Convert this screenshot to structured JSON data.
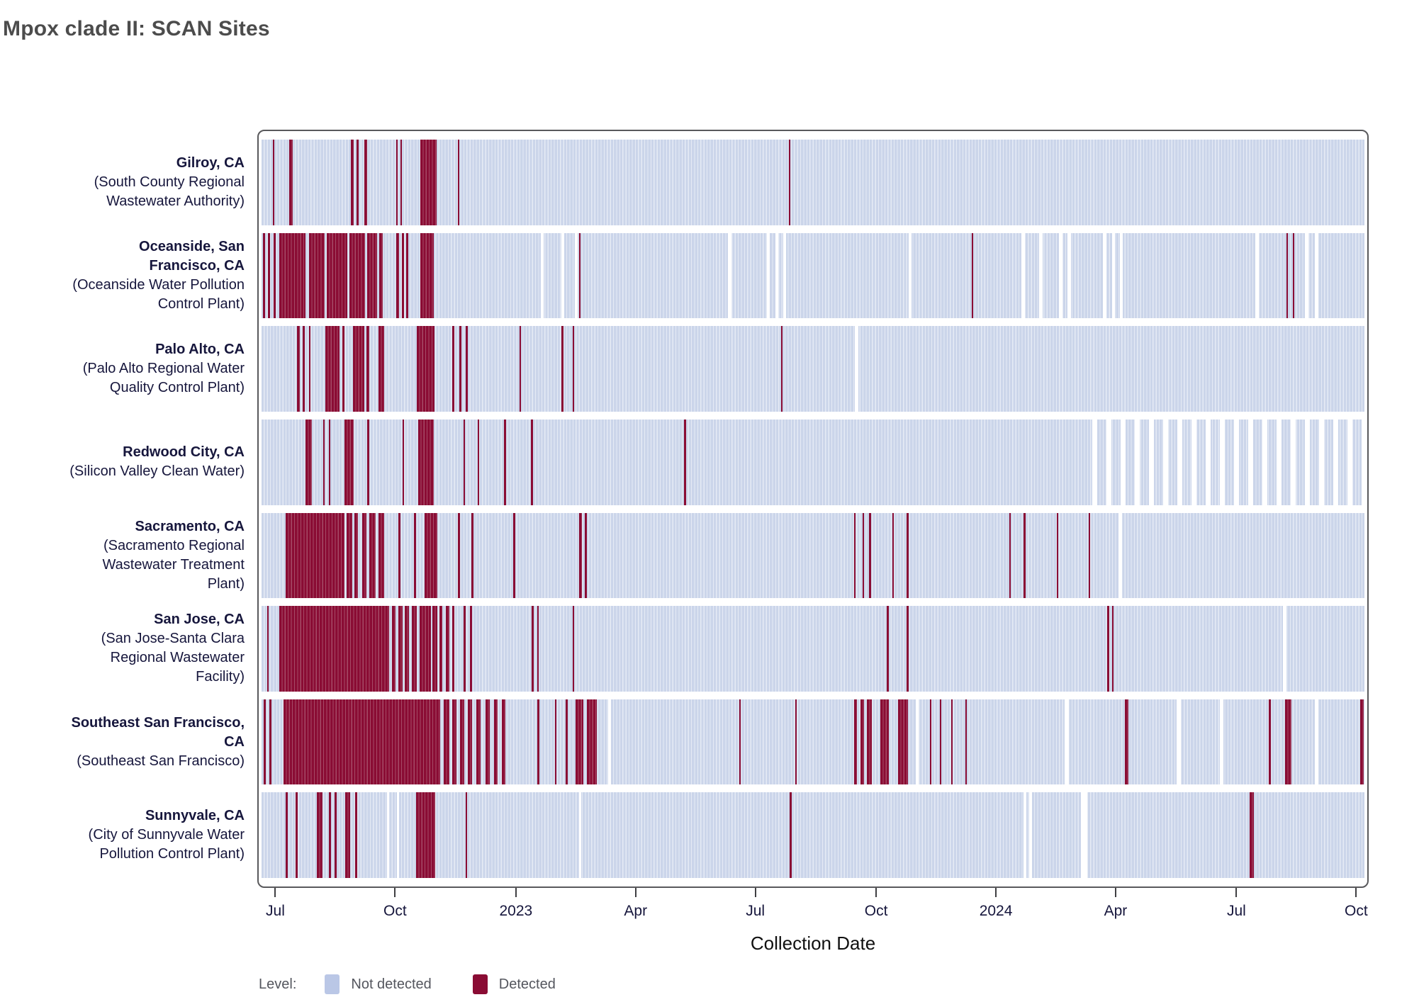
{
  "chart_data": {
    "type": "heatmap",
    "title": "Mpox clade II: SCAN Sites",
    "xlabel": "Collection Date",
    "x_axis": {
      "domain_start": "2022-06-18",
      "domain_end": "2024-10-12",
      "ticks": [
        {
          "label": "Jul",
          "pct": 1.5
        },
        {
          "label": "Oct",
          "pct": 12.3
        },
        {
          "label": "2023",
          "pct": 23.2
        },
        {
          "label": "Apr",
          "pct": 34.0
        },
        {
          "label": "Jul",
          "pct": 44.8
        },
        {
          "label": "Oct",
          "pct": 55.7
        },
        {
          "label": "2024",
          "pct": 66.5
        },
        {
          "label": "Apr",
          "pct": 77.3
        },
        {
          "label": "Jul",
          "pct": 88.2
        },
        {
          "label": "Oct",
          "pct": 99.0
        }
      ]
    },
    "legend": {
      "title": "Level:",
      "items": [
        {
          "label": "Not detected",
          "color": "#bac7e6"
        },
        {
          "label": "Detected",
          "color": "#8a0c34"
        }
      ]
    },
    "colors": {
      "not_detected_stripe": "#cbd5ea",
      "not_detected_stripe_light": "#e6ebf5",
      "detected": "#8a0c34",
      "panel_border": "#59595c",
      "label_text": "#16163c",
      "title_text": "#4c4c4c",
      "legend_text": "#54565e"
    },
    "sites": [
      {
        "name": "Gilroy, CA",
        "facility": "(South County Regional Wastewater Authority)",
        "detections": [
          [
            1.0,
            0.15
          ],
          [
            2.5,
            0.3
          ],
          [
            8.1,
            0.25
          ],
          [
            8.6,
            0.2
          ],
          [
            9.3,
            0.3
          ],
          [
            12.2,
            0.15
          ],
          [
            12.6,
            0.15
          ],
          [
            14.4,
            1.45
          ],
          [
            17.8,
            0.15
          ],
          [
            47.8,
            0.15
          ]
        ],
        "gaps": [],
        "sparse": []
      },
      {
        "name": "Oceanside, San Francisco, CA",
        "facility": "(Oceanside Water Pollution Control Plant)",
        "detections": [
          [
            0.1,
            0.25
          ],
          [
            0.6,
            0.2
          ],
          [
            1.1,
            0.2
          ],
          [
            1.6,
            2.4
          ],
          [
            4.3,
            1.4
          ],
          [
            5.9,
            1.9
          ],
          [
            8.0,
            1.4
          ],
          [
            9.6,
            0.9
          ],
          [
            10.7,
            0.3
          ],
          [
            12.2,
            0.25
          ],
          [
            12.7,
            0.25
          ],
          [
            13.1,
            0.2
          ],
          [
            14.4,
            1.2
          ],
          [
            28.8,
            0.13
          ],
          [
            64.4,
            0.15
          ],
          [
            92.9,
            0.13
          ],
          [
            93.5,
            0.13
          ]
        ],
        "gaps": [
          [
            25.3,
            0.25
          ],
          [
            27.2,
            0.25
          ],
          [
            28.4,
            0.25
          ],
          [
            42.3,
            0.3
          ],
          [
            45.8,
            0.25
          ],
          [
            46.6,
            0.25
          ],
          [
            47.3,
            0.25
          ],
          [
            58.7,
            0.25
          ],
          [
            68.9,
            0.3
          ],
          [
            70.5,
            0.3
          ],
          [
            72.3,
            0.3
          ],
          [
            73.1,
            0.3
          ],
          [
            76.3,
            0.3
          ],
          [
            77.1,
            0.3
          ],
          [
            77.8,
            0.3
          ],
          [
            90.1,
            0.3
          ],
          [
            94.6,
            0.3
          ],
          [
            95.5,
            0.3
          ]
        ],
        "sparse": []
      },
      {
        "name": "Palo Alto, CA",
        "facility": "(Palo Alto Regional Water Quality Control Plant)",
        "detections": [
          [
            3.2,
            0.25
          ],
          [
            3.7,
            0.2
          ],
          [
            4.3,
            0.15
          ],
          [
            5.8,
            1.3
          ],
          [
            7.3,
            0.25
          ],
          [
            8.3,
            1.0
          ],
          [
            9.5,
            0.3
          ],
          [
            10.6,
            0.55
          ],
          [
            14.1,
            1.55
          ],
          [
            17.3,
            0.2
          ],
          [
            17.9,
            0.2
          ],
          [
            18.5,
            0.2
          ],
          [
            23.4,
            0.15
          ],
          [
            27.2,
            0.15
          ],
          [
            28.2,
            0.15
          ],
          [
            47.1,
            0.15
          ]
        ],
        "gaps": [
          [
            53.8,
            0.3
          ]
        ],
        "sparse": []
      },
      {
        "name": "Redwood City, CA",
        "facility": "(Silicon Valley Clean Water)",
        "detections": [
          [
            4.0,
            0.55
          ],
          [
            5.6,
            0.15
          ],
          [
            6.1,
            0.15
          ],
          [
            7.5,
            0.85
          ],
          [
            9.6,
            0.2
          ],
          [
            12.8,
            0.15
          ],
          [
            14.2,
            1.4
          ],
          [
            18.3,
            0.15
          ],
          [
            19.6,
            0.15
          ],
          [
            22.0,
            0.15
          ],
          [
            24.4,
            0.2
          ],
          [
            38.3,
            0.2
          ]
        ],
        "gaps": [],
        "sparse": [
          [
            74.5,
            25.5
          ]
        ]
      },
      {
        "name": "Sacramento, CA",
        "facility": "(Sacramento Regional Wastewater Treatment Plant)",
        "detections": [
          [
            2.2,
            5.3
          ],
          [
            7.7,
            0.5
          ],
          [
            8.4,
            0.35
          ],
          [
            9.1,
            0.4
          ],
          [
            9.8,
            0.55
          ],
          [
            10.6,
            0.5
          ],
          [
            12.4,
            0.2
          ],
          [
            13.8,
            0.2
          ],
          [
            14.8,
            1.15
          ],
          [
            17.8,
            0.2
          ],
          [
            19.0,
            0.2
          ],
          [
            22.8,
            0.2
          ],
          [
            28.8,
            0.25
          ],
          [
            29.3,
            0.2
          ],
          [
            53.7,
            0.15
          ],
          [
            54.5,
            0.15
          ],
          [
            55.1,
            0.15
          ],
          [
            57.2,
            0.15
          ],
          [
            58.5,
            0.15
          ],
          [
            67.8,
            0.15
          ],
          [
            69.1,
            0.15
          ],
          [
            72.1,
            0.15
          ],
          [
            75.0,
            0.15
          ]
        ],
        "gaps": [
          [
            77.7,
            0.35
          ]
        ],
        "sparse": []
      },
      {
        "name": "San Jose, CA",
        "facility": "(San Jose-Santa Clara Regional Wastewater Facility)",
        "detections": [
          [
            0.5,
            0.15
          ],
          [
            1.6,
            10.0
          ],
          [
            11.8,
            0.35
          ],
          [
            12.4,
            0.4
          ],
          [
            13.0,
            0.35
          ],
          [
            13.6,
            0.5
          ],
          [
            14.3,
            1.05
          ],
          [
            15.5,
            0.45
          ],
          [
            16.1,
            0.3
          ],
          [
            16.7,
            0.3
          ],
          [
            17.3,
            0.2
          ],
          [
            18.3,
            0.2
          ],
          [
            18.9,
            0.2
          ],
          [
            24.5,
            0.15
          ],
          [
            25.0,
            0.15
          ],
          [
            28.2,
            0.15
          ],
          [
            56.7,
            0.15
          ],
          [
            58.5,
            0.15
          ],
          [
            76.7,
            0.15
          ],
          [
            77.1,
            0.15
          ]
        ],
        "gaps": [
          [
            92.6,
            0.3
          ]
        ],
        "sparse": []
      },
      {
        "name": "Southeast San Francisco, CA",
        "facility": "(Southeast San Francisco)",
        "detections": [
          [
            0.2,
            0.2
          ],
          [
            0.7,
            0.2
          ],
          [
            2.0,
            14.2
          ],
          [
            16.5,
            0.5
          ],
          [
            17.3,
            0.4
          ],
          [
            18.0,
            0.35
          ],
          [
            18.7,
            0.4
          ],
          [
            19.5,
            0.35
          ],
          [
            20.3,
            0.4
          ],
          [
            21.1,
            0.3
          ],
          [
            21.8,
            0.3
          ],
          [
            25.0,
            0.2
          ],
          [
            26.6,
            0.15
          ],
          [
            27.6,
            0.15
          ],
          [
            28.5,
            0.7
          ],
          [
            29.5,
            0.9
          ],
          [
            43.3,
            0.15
          ],
          [
            48.4,
            0.15
          ],
          [
            53.7,
            0.3
          ],
          [
            54.3,
            0.3
          ],
          [
            54.9,
            0.45
          ],
          [
            56.1,
            0.75
          ],
          [
            57.7,
            0.9
          ],
          [
            60.6,
            0.15
          ],
          [
            61.5,
            0.15
          ],
          [
            62.5,
            0.15
          ],
          [
            63.8,
            0.15
          ],
          [
            78.3,
            0.3
          ],
          [
            91.3,
            0.2
          ],
          [
            92.8,
            0.55
          ],
          [
            99.6,
            0.35
          ]
        ],
        "gaps": [
          [
            31.4,
            0.3
          ],
          [
            59.3,
            0.3
          ],
          [
            72.8,
            0.4
          ],
          [
            83.0,
            0.35
          ],
          [
            86.9,
            0.3
          ],
          [
            95.5,
            0.3
          ]
        ],
        "sparse": []
      },
      {
        "name": "Sunnyvale, CA",
        "facility": "(City of Sunnyvale Water Pollution Control Plant)",
        "detections": [
          [
            2.2,
            0.15
          ],
          [
            3.1,
            0.15
          ],
          [
            5.0,
            0.5
          ],
          [
            6.1,
            0.2
          ],
          [
            6.6,
            0.2
          ],
          [
            7.6,
            0.45
          ],
          [
            8.5,
            0.2
          ],
          [
            14.0,
            1.75
          ],
          [
            18.5,
            0.15
          ],
          [
            47.9,
            0.15
          ],
          [
            89.6,
            0.4
          ]
        ],
        "gaps": [
          [
            11.4,
            0.2
          ],
          [
            12.3,
            0.2
          ],
          [
            28.8,
            0.18
          ],
          [
            69.1,
            0.25
          ],
          [
            69.6,
            0.25
          ],
          [
            74.3,
            0.55
          ]
        ],
        "sparse": []
      }
    ]
  }
}
